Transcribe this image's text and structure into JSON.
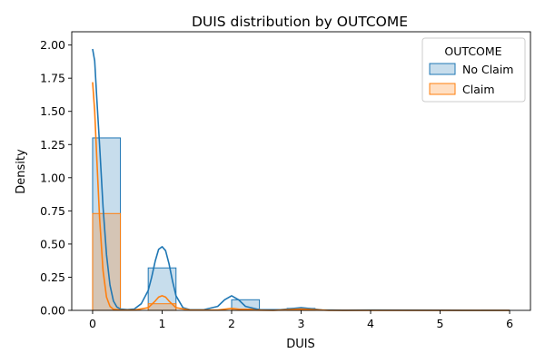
{
  "chart_data": {
    "type": "histogram",
    "title": "DUIS distribution by OUTCOME",
    "xlabel": "DUIS",
    "ylabel": "Density",
    "xlim": [
      -0.3,
      6.3
    ],
    "ylim": [
      0,
      2.1
    ],
    "xticks": [
      0,
      1,
      2,
      3,
      4,
      5,
      6
    ],
    "yticks": [
      0.0,
      0.25,
      0.5,
      0.75,
      1.0,
      1.25,
      1.5,
      1.75,
      2.0
    ],
    "xtick_labels": [
      "0",
      "1",
      "2",
      "3",
      "4",
      "5",
      "6"
    ],
    "ytick_labels": [
      "0.00",
      "0.25",
      "0.50",
      "0.75",
      "1.00",
      "1.25",
      "1.50",
      "1.75",
      "2.00"
    ],
    "grid": false,
    "legend": {
      "title": "OUTCOME",
      "placement": "top-right"
    },
    "bin_edges": [
      0.0,
      0.4,
      0.8,
      1.2,
      1.6,
      2.0,
      2.4,
      2.8,
      3.2,
      3.6,
      4.0,
      4.4,
      4.8,
      5.2,
      5.6,
      6.0
    ],
    "series": [
      {
        "name": "No Claim",
        "color": "#1f77b4",
        "densities": [
          1.3,
          0.0,
          0.32,
          0.0,
          0.0,
          0.08,
          0.0,
          0.015,
          0.0,
          0.0,
          0.002,
          0.0,
          0.0,
          0.0,
          0.001
        ],
        "kde": {
          "x": [
            0.0,
            0.03,
            0.06,
            0.1,
            0.15,
            0.2,
            0.25,
            0.3,
            0.35,
            0.4,
            0.5,
            0.6,
            0.7,
            0.8,
            0.85,
            0.9,
            0.95,
            1.0,
            1.05,
            1.1,
            1.15,
            1.2,
            1.3,
            1.4,
            1.6,
            1.8,
            1.9,
            2.0,
            2.1,
            2.2,
            2.4,
            2.7,
            2.9,
            3.0,
            3.1,
            3.3,
            3.6,
            4.0,
            5.0,
            6.0
          ],
          "y": [
            1.97,
            1.88,
            1.6,
            1.25,
            0.78,
            0.42,
            0.19,
            0.07,
            0.025,
            0.01,
            0.006,
            0.01,
            0.05,
            0.15,
            0.25,
            0.37,
            0.46,
            0.48,
            0.45,
            0.35,
            0.22,
            0.11,
            0.02,
            0.005,
            0.005,
            0.03,
            0.08,
            0.11,
            0.08,
            0.03,
            0.005,
            0.005,
            0.015,
            0.02,
            0.015,
            0.003,
            0.001,
            0.002,
            0.001,
            0.0
          ]
        }
      },
      {
        "name": "Claim",
        "color": "#ff7f0e",
        "densities": [
          0.73,
          0.0,
          0.05,
          0.0,
          0.0,
          0.01,
          0.0,
          0.004,
          0.0,
          0.0,
          0.0,
          0.0,
          0.0,
          0.0,
          0.0
        ],
        "kde": {
          "x": [
            0.0,
            0.03,
            0.06,
            0.1,
            0.15,
            0.2,
            0.25,
            0.3,
            0.4,
            0.6,
            0.8,
            0.9,
            0.95,
            1.0,
            1.05,
            1.1,
            1.2,
            1.4,
            1.8,
            2.0,
            2.2,
            2.6,
            3.0,
            3.4,
            4.0,
            6.0
          ],
          "y": [
            1.72,
            1.5,
            1.15,
            0.7,
            0.3,
            0.1,
            0.03,
            0.008,
            0.002,
            0.002,
            0.02,
            0.07,
            0.1,
            0.11,
            0.1,
            0.07,
            0.02,
            0.002,
            0.002,
            0.015,
            0.003,
            0.0,
            0.01,
            0.0,
            0.0,
            0.0
          ]
        }
      }
    ]
  }
}
